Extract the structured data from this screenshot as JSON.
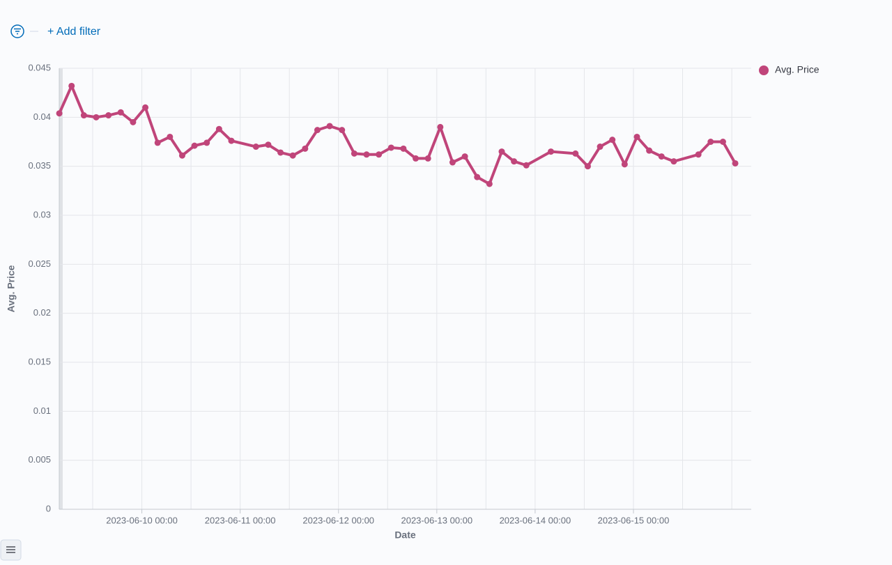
{
  "filter_bar": {
    "add_filter": "+ Add filter"
  },
  "chart_data": {
    "type": "line",
    "xlabel": "Date",
    "ylabel": "Avg. Price",
    "x": [
      "2023-06-09 03:51",
      "2023-06-09 06:51",
      "2023-06-09 09:51",
      "2023-06-09 12:51",
      "2023-06-09 15:51",
      "2023-06-09 18:51",
      "2023-06-09 21:51",
      "2023-06-10 00:51",
      "2023-06-10 03:51",
      "2023-06-10 06:51",
      "2023-06-10 09:51",
      "2023-06-10 12:51",
      "2023-06-10 15:51",
      "2023-06-10 18:51",
      "2023-06-10 21:51",
      "2023-06-11 03:51",
      "2023-06-11 06:51",
      "2023-06-11 09:51",
      "2023-06-11 12:51",
      "2023-06-11 15:51",
      "2023-06-11 18:51",
      "2023-06-11 21:51",
      "2023-06-12 00:51",
      "2023-06-12 03:51",
      "2023-06-12 06:51",
      "2023-06-12 09:51",
      "2023-06-12 12:51",
      "2023-06-12 15:51",
      "2023-06-12 18:51",
      "2023-06-12 21:51",
      "2023-06-13 00:51",
      "2023-06-13 03:51",
      "2023-06-13 06:51",
      "2023-06-13 09:51",
      "2023-06-13 12:51",
      "2023-06-13 15:51",
      "2023-06-13 18:51",
      "2023-06-13 21:51",
      "2023-06-14 03:51",
      "2023-06-14 09:51",
      "2023-06-14 12:51",
      "2023-06-14 15:51",
      "2023-06-14 18:51",
      "2023-06-14 21:51",
      "2023-06-15 00:51",
      "2023-06-15 03:51",
      "2023-06-15 06:51",
      "2023-06-15 09:51",
      "2023-06-15 15:51",
      "2023-06-15 18:51",
      "2023-06-15 21:51",
      "2023-06-16 00:51"
    ],
    "series": [
      {
        "name": "Avg. Price",
        "color": "#c0457a",
        "values": [
          0.0404,
          0.0432,
          0.0402,
          0.04,
          0.0402,
          0.0405,
          0.0395,
          0.041,
          0.0374,
          0.038,
          0.0361,
          0.0371,
          0.0374,
          0.0388,
          0.0376,
          0.037,
          0.0372,
          0.0364,
          0.0361,
          0.0368,
          0.0387,
          0.0391,
          0.0387,
          0.0363,
          0.0362,
          0.0362,
          0.0369,
          0.0368,
          0.0358,
          0.0358,
          0.039,
          0.0354,
          0.036,
          0.0339,
          0.0332,
          0.0365,
          0.0355,
          0.0351,
          0.0365,
          0.0363,
          0.035,
          0.037,
          0.0377,
          0.0352,
          0.038,
          0.0366,
          0.036,
          0.0355,
          0.0362,
          0.0375,
          0.0375,
          0.0353
        ]
      }
    ],
    "xlim": [
      "2023-06-09 03:50",
      "2023-06-16 04:45"
    ],
    "xticks": [
      "2023-06-10 00:00",
      "2023-06-11 00:00",
      "2023-06-12 00:00",
      "2023-06-13 00:00",
      "2023-06-14 00:00",
      "2023-06-15 00:00"
    ],
    "ylim": [
      0,
      0.045
    ],
    "yticks": [
      0,
      0.005,
      0.01,
      0.015,
      0.02,
      0.025,
      0.03,
      0.035,
      0.04,
      0.045
    ],
    "grid": true,
    "legend": "right"
  }
}
